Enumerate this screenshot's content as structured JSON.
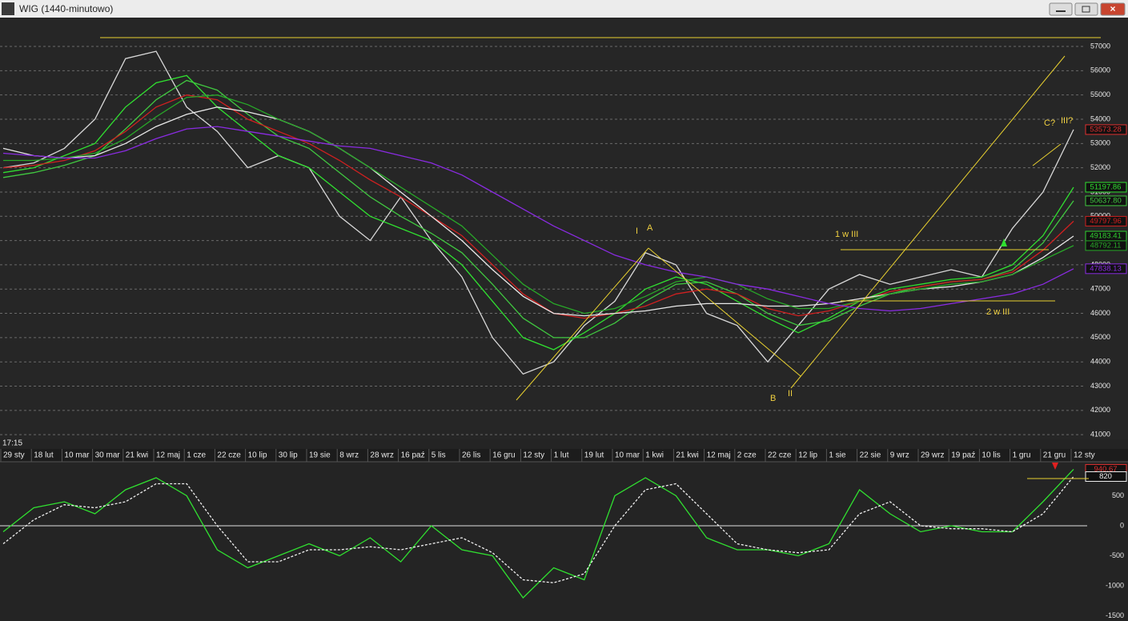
{
  "window": {
    "title": "WIG (1440-minutowo)",
    "time": "17:15"
  },
  "annotations": [
    "I",
    "A",
    "1 w III",
    "2 w III",
    "B",
    "II",
    "C?",
    "III?"
  ],
  "chart_data": [
    {
      "type": "line",
      "categories": [
        "29 sty",
        "18 lut",
        "10 mar",
        "30 mar",
        "21 kwi",
        "12 maj",
        "1 cze",
        "22 cze",
        "10 lip",
        "30 lip",
        "19 sie",
        "8 wrz",
        "28 wrz",
        "16 paź",
        "5 lis",
        "26 lis",
        "16 gru",
        "12 sty",
        "1 lut",
        "19 lut",
        "10 mar",
        "1 kwi",
        "21 kwi",
        "12 maj",
        "2 cze",
        "22 cze",
        "12 lip",
        "1 sie",
        "22 sie",
        "9 wrz",
        "29 wrz",
        "19 paź",
        "10 lis",
        "1 gru",
        "21 gru",
        "12 sty"
      ],
      "ylim": [
        40840,
        58090
      ],
      "yticks": [
        41000,
        42000,
        43000,
        44000,
        45000,
        46000,
        47000,
        48000,
        49000,
        50000,
        51000,
        52000,
        53000,
        54000,
        55000,
        56000,
        57000
      ],
      "grid": true,
      "series": [
        {
          "name": "WIG",
          "color": "#d8d8d8",
          "label_color": "#e03030",
          "values": [
            52000,
            52200,
            52800,
            54000,
            56500,
            56800,
            54500,
            53500,
            52000,
            52500,
            52000,
            50000,
            49000,
            50800,
            49000,
            47500,
            45000,
            43500,
            44000,
            45500,
            46500,
            48500,
            48000,
            46000,
            45500,
            44000,
            45500,
            47000,
            47600,
            47200,
            47500,
            47800,
            47500,
            49500,
            51000,
            53573.28
          ]
        },
        {
          "name": "MA1",
          "color": "#30e030",
          "values": [
            51800,
            52000,
            52500,
            53000,
            54500,
            55500,
            55800,
            54500,
            53500,
            52500,
            52000,
            51000,
            50000,
            49500,
            49000,
            48000,
            46500,
            45000,
            44500,
            45200,
            46000,
            47000,
            47500,
            47200,
            46500,
            45800,
            45200,
            45800,
            46500,
            47000,
            47200,
            47400,
            47500,
            48000,
            49200,
            51197.86
          ]
        },
        {
          "name": "MA2",
          "color": "#40c840",
          "last_label": "50637.80",
          "values": [
            51600,
            51800,
            52100,
            52500,
            53600,
            54800,
            55600,
            55200,
            54200,
            53300,
            52800,
            51800,
            50800,
            50000,
            49300,
            48500,
            47200,
            45800,
            45000,
            45000,
            45600,
            46500,
            47200,
            47300,
            46800,
            46000,
            45500,
            45700,
            46300,
            46800,
            47100,
            47300,
            47400,
            47800,
            48900,
            50637.8
          ]
        },
        {
          "name": "MA3",
          "color": "#d02020",
          "values": [
            52000,
            52100,
            52300,
            52700,
            53500,
            54500,
            55000,
            54800,
            54000,
            53500,
            53000,
            52300,
            51500,
            50800,
            50000,
            49200,
            48000,
            46800,
            46000,
            45800,
            46000,
            46300,
            46800,
            47000,
            46800,
            46200,
            45900,
            46100,
            46500,
            46900,
            47100,
            47300,
            47400,
            47700,
            48600,
            49797.96
          ]
        },
        {
          "name": "MA4",
          "color": "#e8e8e8",
          "label_color": "#30d030",
          "values": [
            52800,
            52500,
            52400,
            52500,
            53000,
            53700,
            54200,
            54500,
            54300,
            54000,
            53500,
            52800,
            52000,
            51000,
            50000,
            49000,
            47800,
            46700,
            46000,
            45900,
            46000,
            46100,
            46300,
            46400,
            46400,
            46300,
            46300,
            46400,
            46600,
            46800,
            47000,
            47100,
            47300,
            47600,
            48300,
            49183.41
          ]
        },
        {
          "name": "MA5",
          "color": "#28a828",
          "values": [
            52300,
            52300,
            52400,
            52600,
            53200,
            54100,
            54900,
            55000,
            54600,
            54000,
            53500,
            52800,
            52000,
            51200,
            50400,
            49600,
            48400,
            47200,
            46400,
            46000,
            46200,
            46700,
            47300,
            47500,
            47200,
            46600,
            46200,
            46200,
            46500,
            46800,
            47000,
            47200,
            47300,
            47600,
            48200,
            48792.11
          ]
        },
        {
          "name": "MA6",
          "color": "#8a2be2",
          "values": [
            52600,
            52500,
            52400,
            52400,
            52700,
            53200,
            53600,
            53700,
            53500,
            53300,
            53100,
            52900,
            52800,
            52500,
            52200,
            51700,
            51000,
            50300,
            49600,
            49000,
            48400,
            48000,
            47700,
            47500,
            47200,
            47000,
            46700,
            46400,
            46200,
            46100,
            46200,
            46400,
            46600,
            46800,
            47200,
            47838.13
          ]
        }
      ]
    },
    {
      "type": "line",
      "ylim": [
        -1587,
        1053
      ],
      "yticks": [
        500,
        0,
        -500,
        -1000,
        -1500
      ],
      "series": [
        {
          "name": "OSC",
          "color": "#30e030",
          "label_color": "#e03030",
          "values": [
            -100,
            300,
            400,
            200,
            600,
            800,
            500,
            -400,
            -700,
            -500,
            -300,
            -500,
            -200,
            -600,
            0,
            -400,
            -500,
            -1200,
            -700,
            -900,
            500,
            800,
            500,
            -200,
            -400,
            -400,
            -500,
            -300,
            600,
            200,
            -100,
            0,
            -100,
            -100,
            400,
            940.67
          ]
        },
        {
          "name": "SIG",
          "color": "#f0f0f0",
          "dashed": true,
          "values": [
            -300,
            100,
            350,
            300,
            400,
            700,
            700,
            0,
            -600,
            -600,
            -400,
            -400,
            -350,
            -400,
            -300,
            -200,
            -450,
            -900,
            -950,
            -800,
            0,
            600,
            700,
            200,
            -300,
            -400,
            -450,
            -400,
            200,
            400,
            0,
            -50,
            -50,
            -100,
            200,
            820
          ]
        }
      ]
    }
  ]
}
